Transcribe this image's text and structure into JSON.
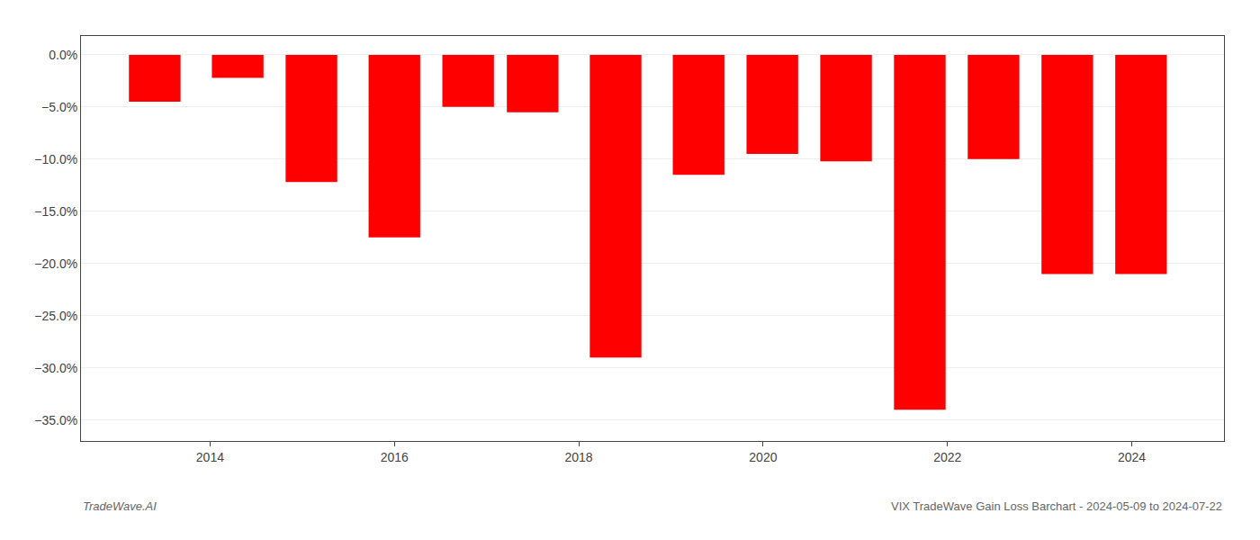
{
  "chart_data": {
    "type": "bar",
    "x": [
      2013.4,
      2014.3,
      2015.1,
      2016.0,
      2016.8,
      2017.5,
      2018.4,
      2019.3,
      2020.1,
      2020.9,
      2021.7,
      2022.5,
      2023.3,
      2024.1
    ],
    "values": [
      -4.5,
      -2.2,
      -12.2,
      -17.5,
      -5.0,
      -5.5,
      -29.0,
      -11.5,
      -9.5,
      -10.2,
      -34.0,
      -10.0,
      -21.0,
      -21.0
    ],
    "color": "#ff0000",
    "xlim": [
      2012.6,
      2025.0
    ],
    "xticks": [
      2014,
      2016,
      2018,
      2020,
      2022,
      2024
    ],
    "ylim": [
      -37.0,
      1.8
    ],
    "yticks": [
      {
        "value": 0.0,
        "label": "0.0%"
      },
      {
        "value": -5.0,
        "label": "−5.0%"
      },
      {
        "value": -10.0,
        "label": "−10.0%"
      },
      {
        "value": -15.0,
        "label": "−15.0%"
      },
      {
        "value": -20.0,
        "label": "−20.0%"
      },
      {
        "value": -25.0,
        "label": "−25.0%"
      },
      {
        "value": -30.0,
        "label": "−30.0%"
      },
      {
        "value": -35.0,
        "label": "−35.0%"
      }
    ],
    "grid": true,
    "annotations": [
      "TradeWave.AI",
      "VIX TradeWave Gain Loss Barchart - 2024-05-09 to 2024-07-22"
    ]
  }
}
